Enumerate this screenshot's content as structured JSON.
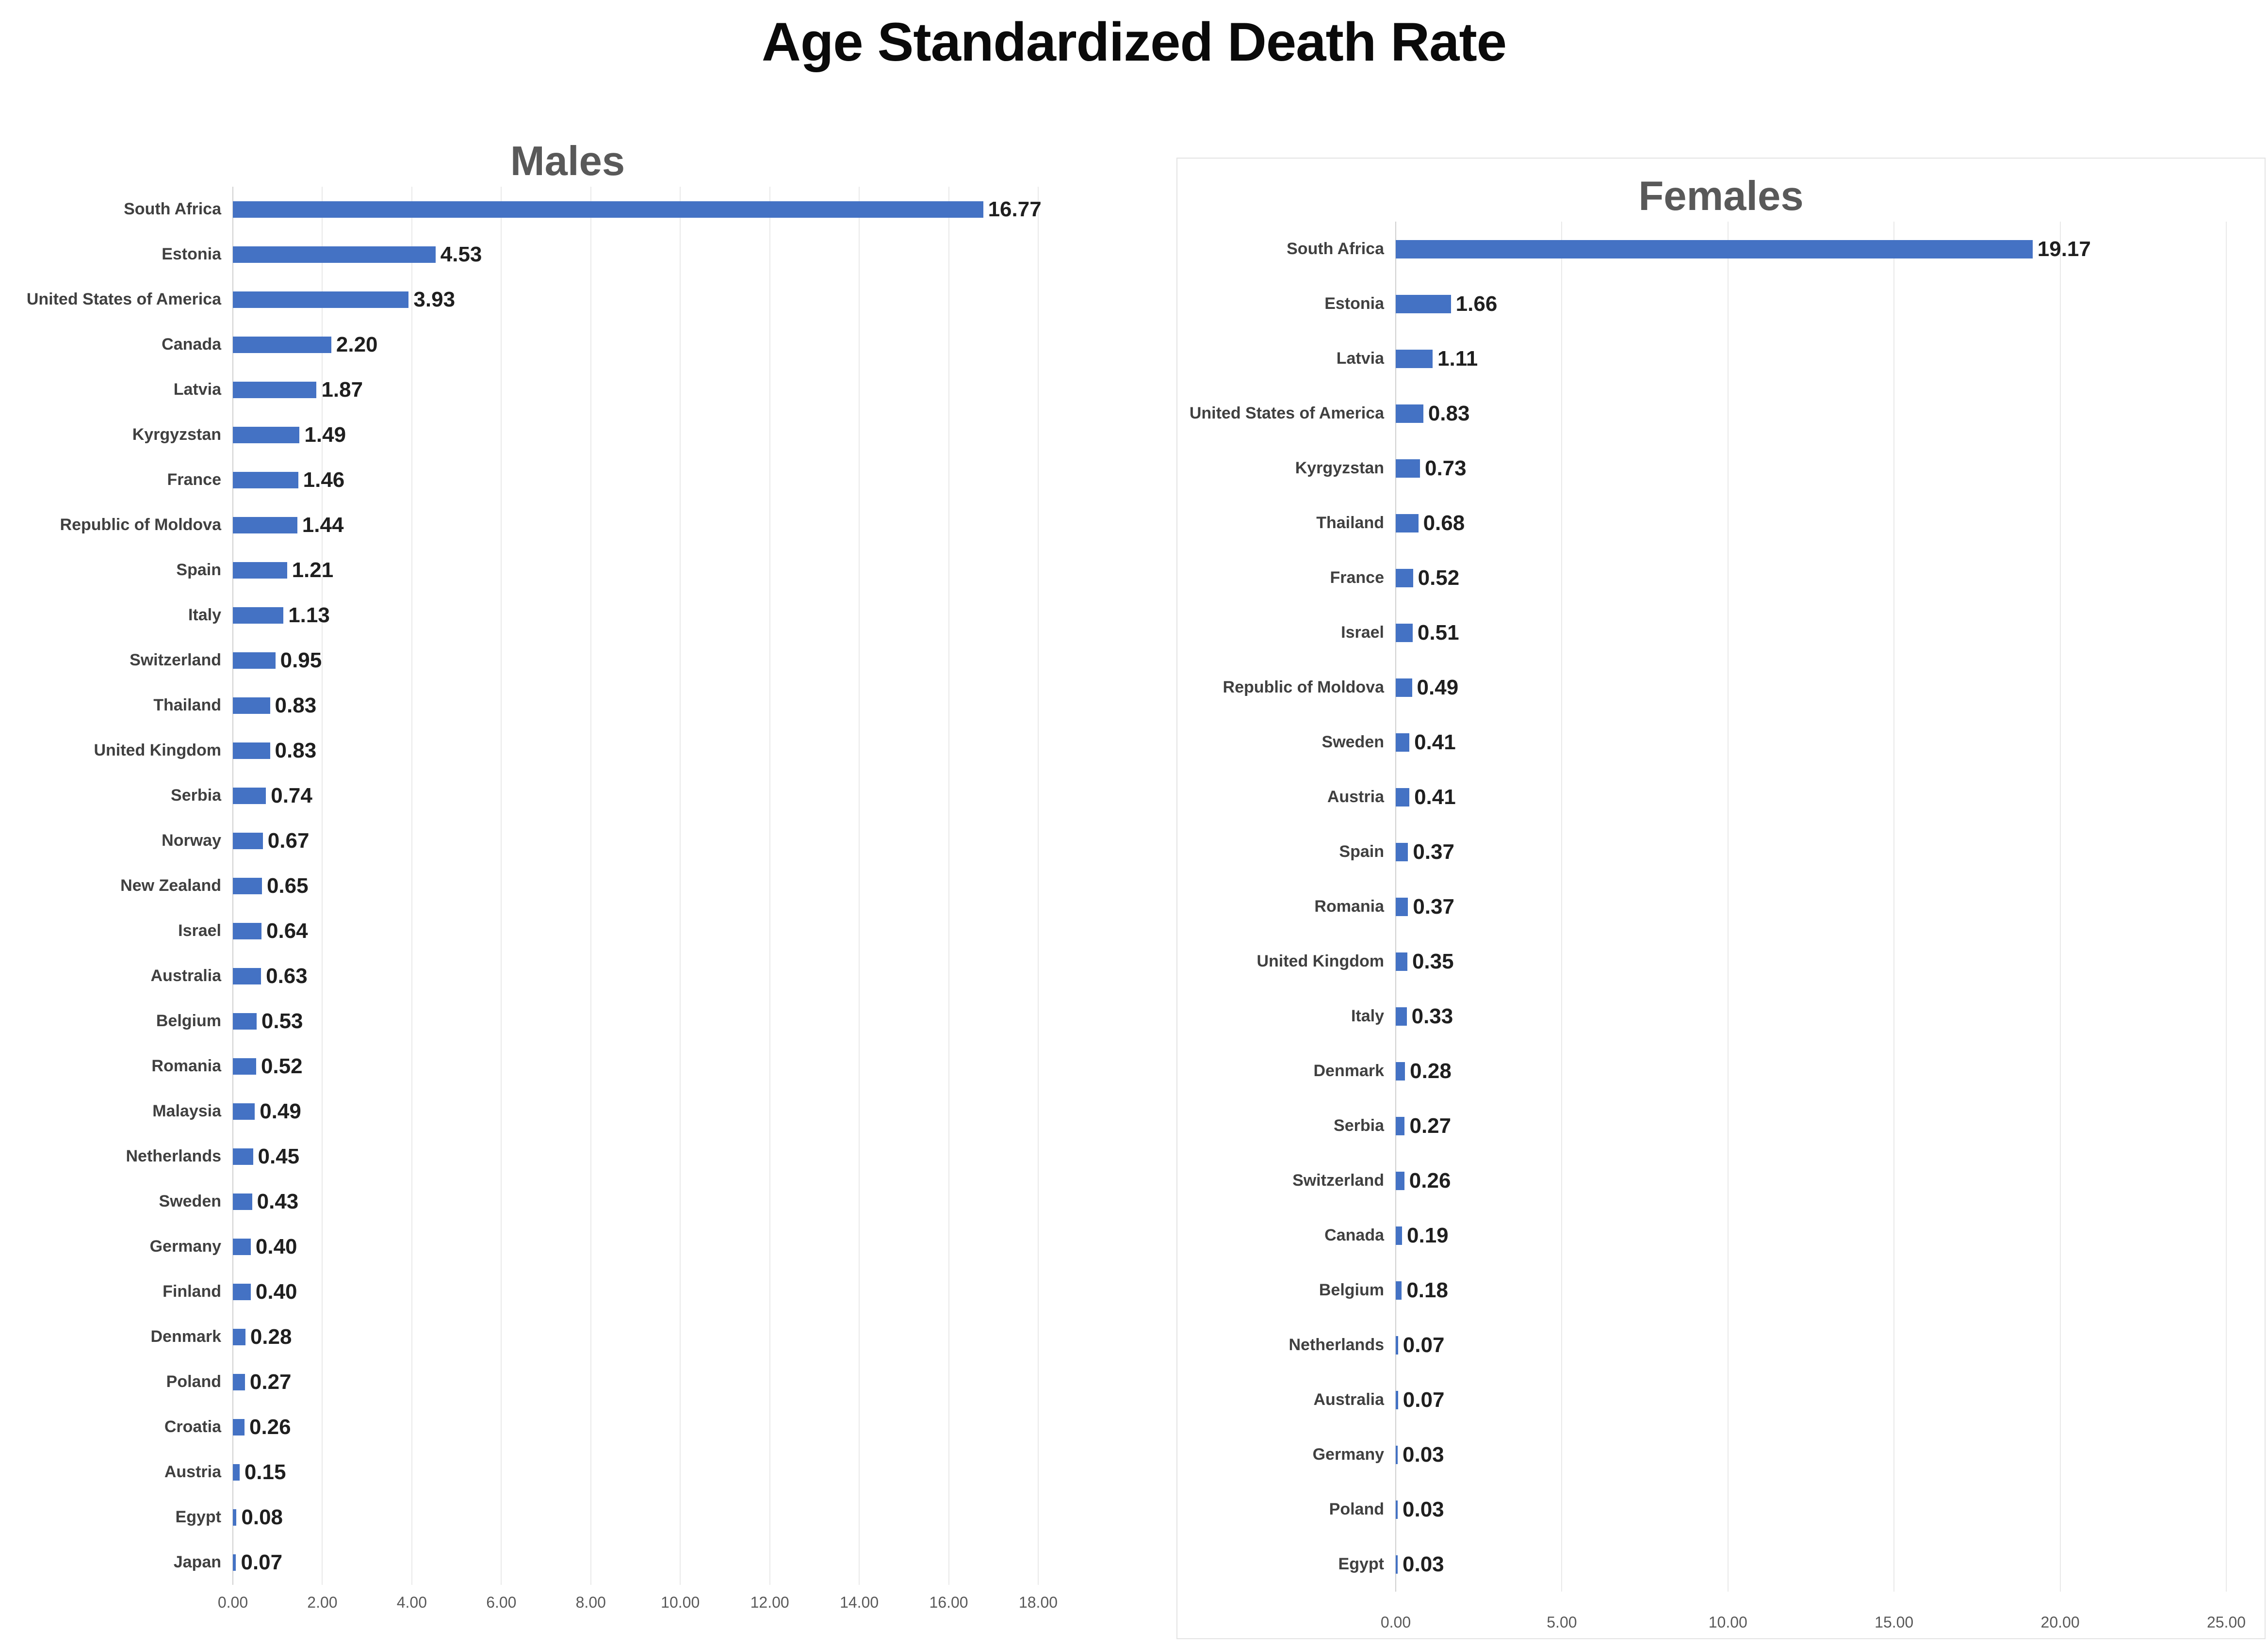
{
  "title": "Age Standardized Death Rate",
  "accent_color": "#4472C4",
  "chart_data": [
    {
      "type": "bar",
      "orientation": "horizontal",
      "title": "Males",
      "xlabel": "",
      "ylabel": "",
      "xlim": [
        0,
        18
      ],
      "x_ticks": [
        "0.00",
        "2.00",
        "4.00",
        "6.00",
        "8.00",
        "10.00",
        "12.00",
        "14.00",
        "16.00",
        "18.00"
      ],
      "grid": true,
      "legend": false,
      "bar_color": "#4472C4",
      "value_format_decimals": 2,
      "categories": [
        "South Africa",
        "Estonia",
        "United States of America",
        "Canada",
        "Latvia",
        "Kyrgyzstan",
        "France",
        "Republic of Moldova",
        "Spain",
        "Italy",
        "Switzerland",
        "Thailand",
        "United Kingdom",
        "Serbia",
        "Norway",
        "New Zealand",
        "Israel",
        "Australia",
        "Belgium",
        "Romania",
        "Malaysia",
        "Netherlands",
        "Sweden",
        "Germany",
        "Finland",
        "Denmark",
        "Poland",
        "Croatia",
        "Austria",
        "Egypt",
        "Japan"
      ],
      "values": [
        16.77,
        4.53,
        3.93,
        2.2,
        1.87,
        1.49,
        1.46,
        1.44,
        1.21,
        1.13,
        0.95,
        0.83,
        0.83,
        0.74,
        0.67,
        0.65,
        0.64,
        0.63,
        0.53,
        0.52,
        0.49,
        0.45,
        0.43,
        0.4,
        0.4,
        0.28,
        0.27,
        0.26,
        0.15,
        0.08,
        0.07
      ]
    },
    {
      "type": "bar",
      "orientation": "horizontal",
      "title": "Females",
      "xlabel": "",
      "ylabel": "",
      "xlim": [
        0,
        25
      ],
      "x_ticks": [
        "0.00",
        "5.00",
        "10.00",
        "15.00",
        "20.00",
        "25.00"
      ],
      "grid": true,
      "legend": false,
      "bar_color": "#4472C4",
      "value_format_decimals": 2,
      "categories": [
        "South Africa",
        "Estonia",
        "Latvia",
        "United States of America",
        "Kyrgyzstan",
        "Thailand",
        "France",
        "Israel",
        "Republic of Moldova",
        "Sweden",
        "Austria",
        "Spain",
        "Romania",
        "United Kingdom",
        "Italy",
        "Denmark",
        "Serbia",
        "Switzerland",
        "Canada",
        "Belgium",
        "Netherlands",
        "Australia",
        "Germany",
        "Poland",
        "Egypt"
      ],
      "values": [
        19.17,
        1.66,
        1.11,
        0.83,
        0.73,
        0.68,
        0.52,
        0.51,
        0.49,
        0.41,
        0.41,
        0.37,
        0.37,
        0.35,
        0.33,
        0.28,
        0.27,
        0.26,
        0.19,
        0.18,
        0.07,
        0.07,
        0.03,
        0.03,
        0.03
      ]
    }
  ]
}
